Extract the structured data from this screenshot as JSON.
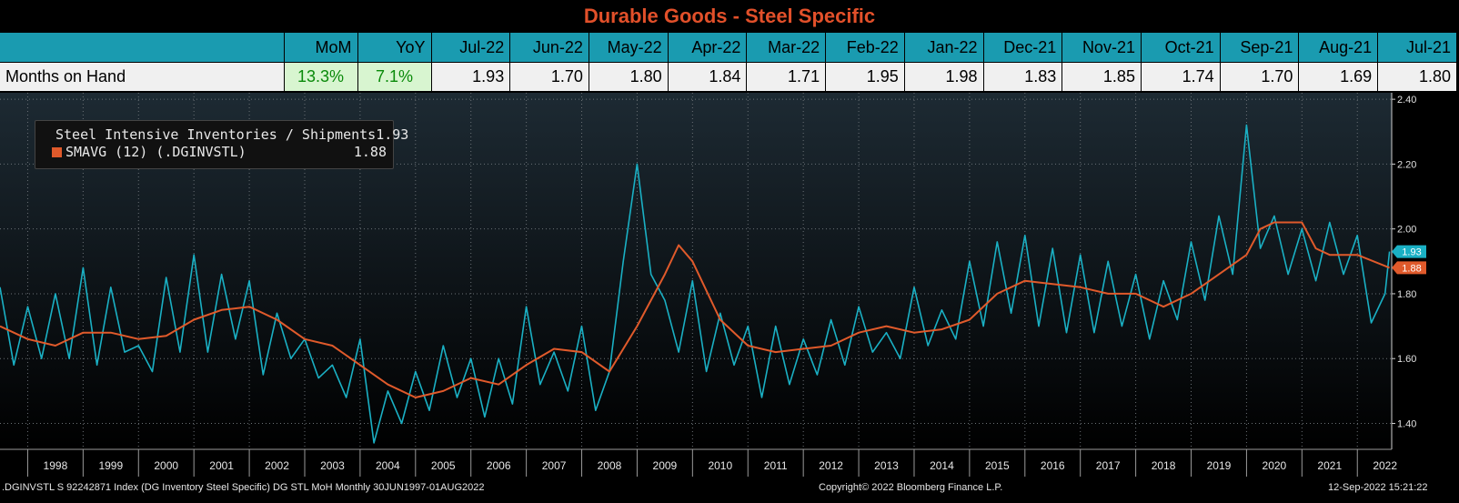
{
  "title": "Durable Goods - Steel Specific",
  "table": {
    "headers": [
      "MoM",
      "YoY",
      "Jul-22",
      "Jun-22",
      "May-22",
      "Apr-22",
      "Mar-22",
      "Feb-22",
      "Jan-22",
      "Dec-21",
      "Nov-21",
      "Oct-21",
      "Sep-21",
      "Aug-21",
      "Jul-21"
    ],
    "row_label": "Months on Hand",
    "values": [
      "13.3%",
      "7.1%",
      "1.93",
      "1.70",
      "1.80",
      "1.84",
      "1.71",
      "1.95",
      "1.98",
      "1.83",
      "1.85",
      "1.74",
      "1.70",
      "1.69",
      "1.80"
    ]
  },
  "legend": [
    {
      "name": "Steel Intensive Inventories / Shipments",
      "value": "1.93",
      "color": "#1ab0c4"
    },
    {
      "name": "SMAVG (12) (.DGINVSTL)",
      "value": "1.88",
      "color": "#e05a2b"
    }
  ],
  "chart_data": {
    "type": "line",
    "x_labels": [
      "1998",
      "1999",
      "2000",
      "2001",
      "2002",
      "2003",
      "2004",
      "2005",
      "2006",
      "2007",
      "2008",
      "2009",
      "2010",
      "2011",
      "2012",
      "2013",
      "2014",
      "2015",
      "2016",
      "2017",
      "2018",
      "2019",
      "2020",
      "2021",
      "2022"
    ],
    "y_ticks": [
      "2.40",
      "2.20",
      "2.00",
      "1.80",
      "1.60",
      "1.40"
    ],
    "ylim": [
      1.32,
      2.42
    ],
    "xlim": [
      1997.5,
      2022.62
    ],
    "last_value_badges": [
      {
        "text": "1.93",
        "color": "#1ab0c4"
      },
      {
        "text": "1.88",
        "color": "#e05a2b"
      }
    ],
    "series": [
      {
        "name": "Steel Intensive Inventories / Shipments",
        "color": "#1ab0c4",
        "points": [
          [
            1997.5,
            1.82
          ],
          [
            1997.75,
            1.58
          ],
          [
            1998.0,
            1.76
          ],
          [
            1998.25,
            1.6
          ],
          [
            1998.5,
            1.8
          ],
          [
            1998.75,
            1.6
          ],
          [
            1999.0,
            1.88
          ],
          [
            1999.25,
            1.58
          ],
          [
            1999.5,
            1.82
          ],
          [
            1999.75,
            1.62
          ],
          [
            2000.0,
            1.64
          ],
          [
            2000.25,
            1.56
          ],
          [
            2000.5,
            1.85
          ],
          [
            2000.75,
            1.62
          ],
          [
            2001.0,
            1.92
          ],
          [
            2001.25,
            1.62
          ],
          [
            2001.5,
            1.86
          ],
          [
            2001.75,
            1.66
          ],
          [
            2002.0,
            1.84
          ],
          [
            2002.25,
            1.55
          ],
          [
            2002.5,
            1.74
          ],
          [
            2002.75,
            1.6
          ],
          [
            2003.0,
            1.66
          ],
          [
            2003.25,
            1.54
          ],
          [
            2003.5,
            1.58
          ],
          [
            2003.75,
            1.48
          ],
          [
            2004.0,
            1.66
          ],
          [
            2004.25,
            1.34
          ],
          [
            2004.5,
            1.5
          ],
          [
            2004.75,
            1.4
          ],
          [
            2005.0,
            1.56
          ],
          [
            2005.25,
            1.44
          ],
          [
            2005.5,
            1.64
          ],
          [
            2005.75,
            1.48
          ],
          [
            2006.0,
            1.6
          ],
          [
            2006.25,
            1.42
          ],
          [
            2006.5,
            1.6
          ],
          [
            2006.75,
            1.46
          ],
          [
            2007.0,
            1.76
          ],
          [
            2007.25,
            1.52
          ],
          [
            2007.5,
            1.62
          ],
          [
            2007.75,
            1.5
          ],
          [
            2008.0,
            1.7
          ],
          [
            2008.25,
            1.44
          ],
          [
            2008.5,
            1.56
          ],
          [
            2008.75,
            1.9
          ],
          [
            2009.0,
            2.2
          ],
          [
            2009.25,
            1.86
          ],
          [
            2009.5,
            1.78
          ],
          [
            2009.75,
            1.62
          ],
          [
            2010.0,
            1.84
          ],
          [
            2010.25,
            1.56
          ],
          [
            2010.5,
            1.74
          ],
          [
            2010.75,
            1.58
          ],
          [
            2011.0,
            1.7
          ],
          [
            2011.25,
            1.48
          ],
          [
            2011.5,
            1.7
          ],
          [
            2011.75,
            1.52
          ],
          [
            2012.0,
            1.66
          ],
          [
            2012.25,
            1.55
          ],
          [
            2012.5,
            1.72
          ],
          [
            2012.75,
            1.58
          ],
          [
            2013.0,
            1.76
          ],
          [
            2013.25,
            1.62
          ],
          [
            2013.5,
            1.68
          ],
          [
            2013.75,
            1.6
          ],
          [
            2014.0,
            1.82
          ],
          [
            2014.25,
            1.64
          ],
          [
            2014.5,
            1.75
          ],
          [
            2014.75,
            1.66
          ],
          [
            2015.0,
            1.9
          ],
          [
            2015.25,
            1.7
          ],
          [
            2015.5,
            1.96
          ],
          [
            2015.75,
            1.74
          ],
          [
            2016.0,
            1.98
          ],
          [
            2016.25,
            1.7
          ],
          [
            2016.5,
            1.94
          ],
          [
            2016.75,
            1.68
          ],
          [
            2017.0,
            1.92
          ],
          [
            2017.25,
            1.68
          ],
          [
            2017.5,
            1.9
          ],
          [
            2017.75,
            1.7
          ],
          [
            2018.0,
            1.86
          ],
          [
            2018.25,
            1.66
          ],
          [
            2018.5,
            1.84
          ],
          [
            2018.75,
            1.72
          ],
          [
            2019.0,
            1.96
          ],
          [
            2019.25,
            1.78
          ],
          [
            2019.5,
            2.04
          ],
          [
            2019.75,
            1.86
          ],
          [
            2020.0,
            2.32
          ],
          [
            2020.25,
            1.94
          ],
          [
            2020.5,
            2.04
          ],
          [
            2020.75,
            1.86
          ],
          [
            2021.0,
            2.0
          ],
          [
            2021.25,
            1.84
          ],
          [
            2021.5,
            2.02
          ],
          [
            2021.75,
            1.86
          ],
          [
            2022.0,
            1.98
          ],
          [
            2022.25,
            1.71
          ],
          [
            2022.5,
            1.8
          ],
          [
            2022.58,
            1.93
          ]
        ]
      },
      {
        "name": "SMAVG (12) (.DGINVSTL)",
        "color": "#e05a2b",
        "points": [
          [
            1997.5,
            1.7
          ],
          [
            1998.0,
            1.66
          ],
          [
            1998.5,
            1.64
          ],
          [
            1999.0,
            1.68
          ],
          [
            1999.5,
            1.68
          ],
          [
            2000.0,
            1.66
          ],
          [
            2000.5,
            1.67
          ],
          [
            2001.0,
            1.72
          ],
          [
            2001.5,
            1.75
          ],
          [
            2002.0,
            1.76
          ],
          [
            2002.5,
            1.72
          ],
          [
            2003.0,
            1.66
          ],
          [
            2003.5,
            1.64
          ],
          [
            2004.0,
            1.58
          ],
          [
            2004.5,
            1.52
          ],
          [
            2005.0,
            1.48
          ],
          [
            2005.5,
            1.5
          ],
          [
            2006.0,
            1.54
          ],
          [
            2006.5,
            1.52
          ],
          [
            2007.0,
            1.58
          ],
          [
            2007.5,
            1.63
          ],
          [
            2008.0,
            1.62
          ],
          [
            2008.5,
            1.56
          ],
          [
            2009.0,
            1.7
          ],
          [
            2009.5,
            1.86
          ],
          [
            2009.75,
            1.95
          ],
          [
            2010.0,
            1.9
          ],
          [
            2010.5,
            1.72
          ],
          [
            2011.0,
            1.64
          ],
          [
            2011.5,
            1.62
          ],
          [
            2012.0,
            1.63
          ],
          [
            2012.5,
            1.64
          ],
          [
            2013.0,
            1.68
          ],
          [
            2013.5,
            1.7
          ],
          [
            2014.0,
            1.68
          ],
          [
            2014.5,
            1.69
          ],
          [
            2015.0,
            1.72
          ],
          [
            2015.5,
            1.8
          ],
          [
            2016.0,
            1.84
          ],
          [
            2016.5,
            1.83
          ],
          [
            2017.0,
            1.82
          ],
          [
            2017.5,
            1.8
          ],
          [
            2018.0,
            1.8
          ],
          [
            2018.5,
            1.76
          ],
          [
            2019.0,
            1.8
          ],
          [
            2019.5,
            1.86
          ],
          [
            2020.0,
            1.92
          ],
          [
            2020.25,
            2.0
          ],
          [
            2020.5,
            2.02
          ],
          [
            2021.0,
            2.02
          ],
          [
            2021.25,
            1.94
          ],
          [
            2021.5,
            1.92
          ],
          [
            2022.0,
            1.92
          ],
          [
            2022.58,
            1.88
          ]
        ]
      }
    ]
  },
  "footer": {
    "left": ".DGINVSTL S 92242871 Index (DG Inventory Steel Specific) DG STL MoH  Monthly 30JUN1997-01AUG2022",
    "center": "Copyright© 2022 Bloomberg Finance L.P.",
    "right": "12-Sep-2022 15:21:22"
  }
}
